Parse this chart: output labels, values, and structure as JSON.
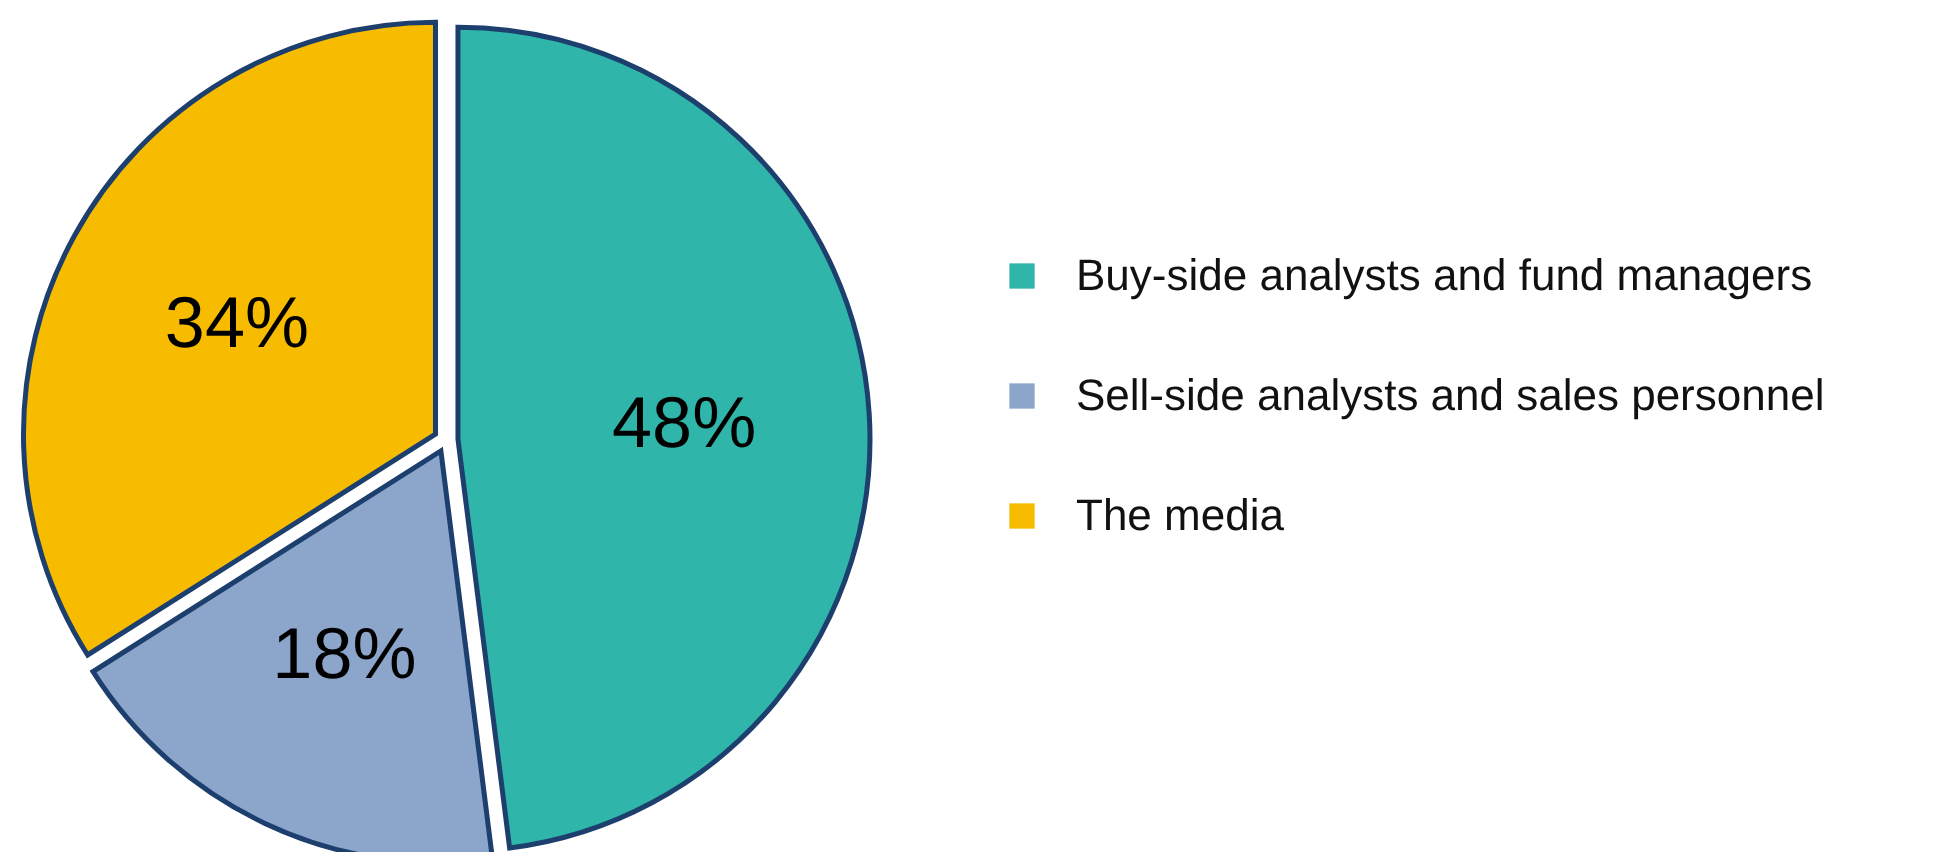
{
  "chart_data": {
    "type": "pie",
    "categories": [
      "Buy-side analysts and fund managers",
      "Sell-side analysts and sales personnel",
      "The media"
    ],
    "values": [
      48,
      18,
      34
    ],
    "colors": [
      "#2fb5a9",
      "#8ba5cb",
      "#f7bc00"
    ],
    "value_labels": [
      "48%",
      "18%",
      "34%"
    ],
    "legend": "right"
  }
}
